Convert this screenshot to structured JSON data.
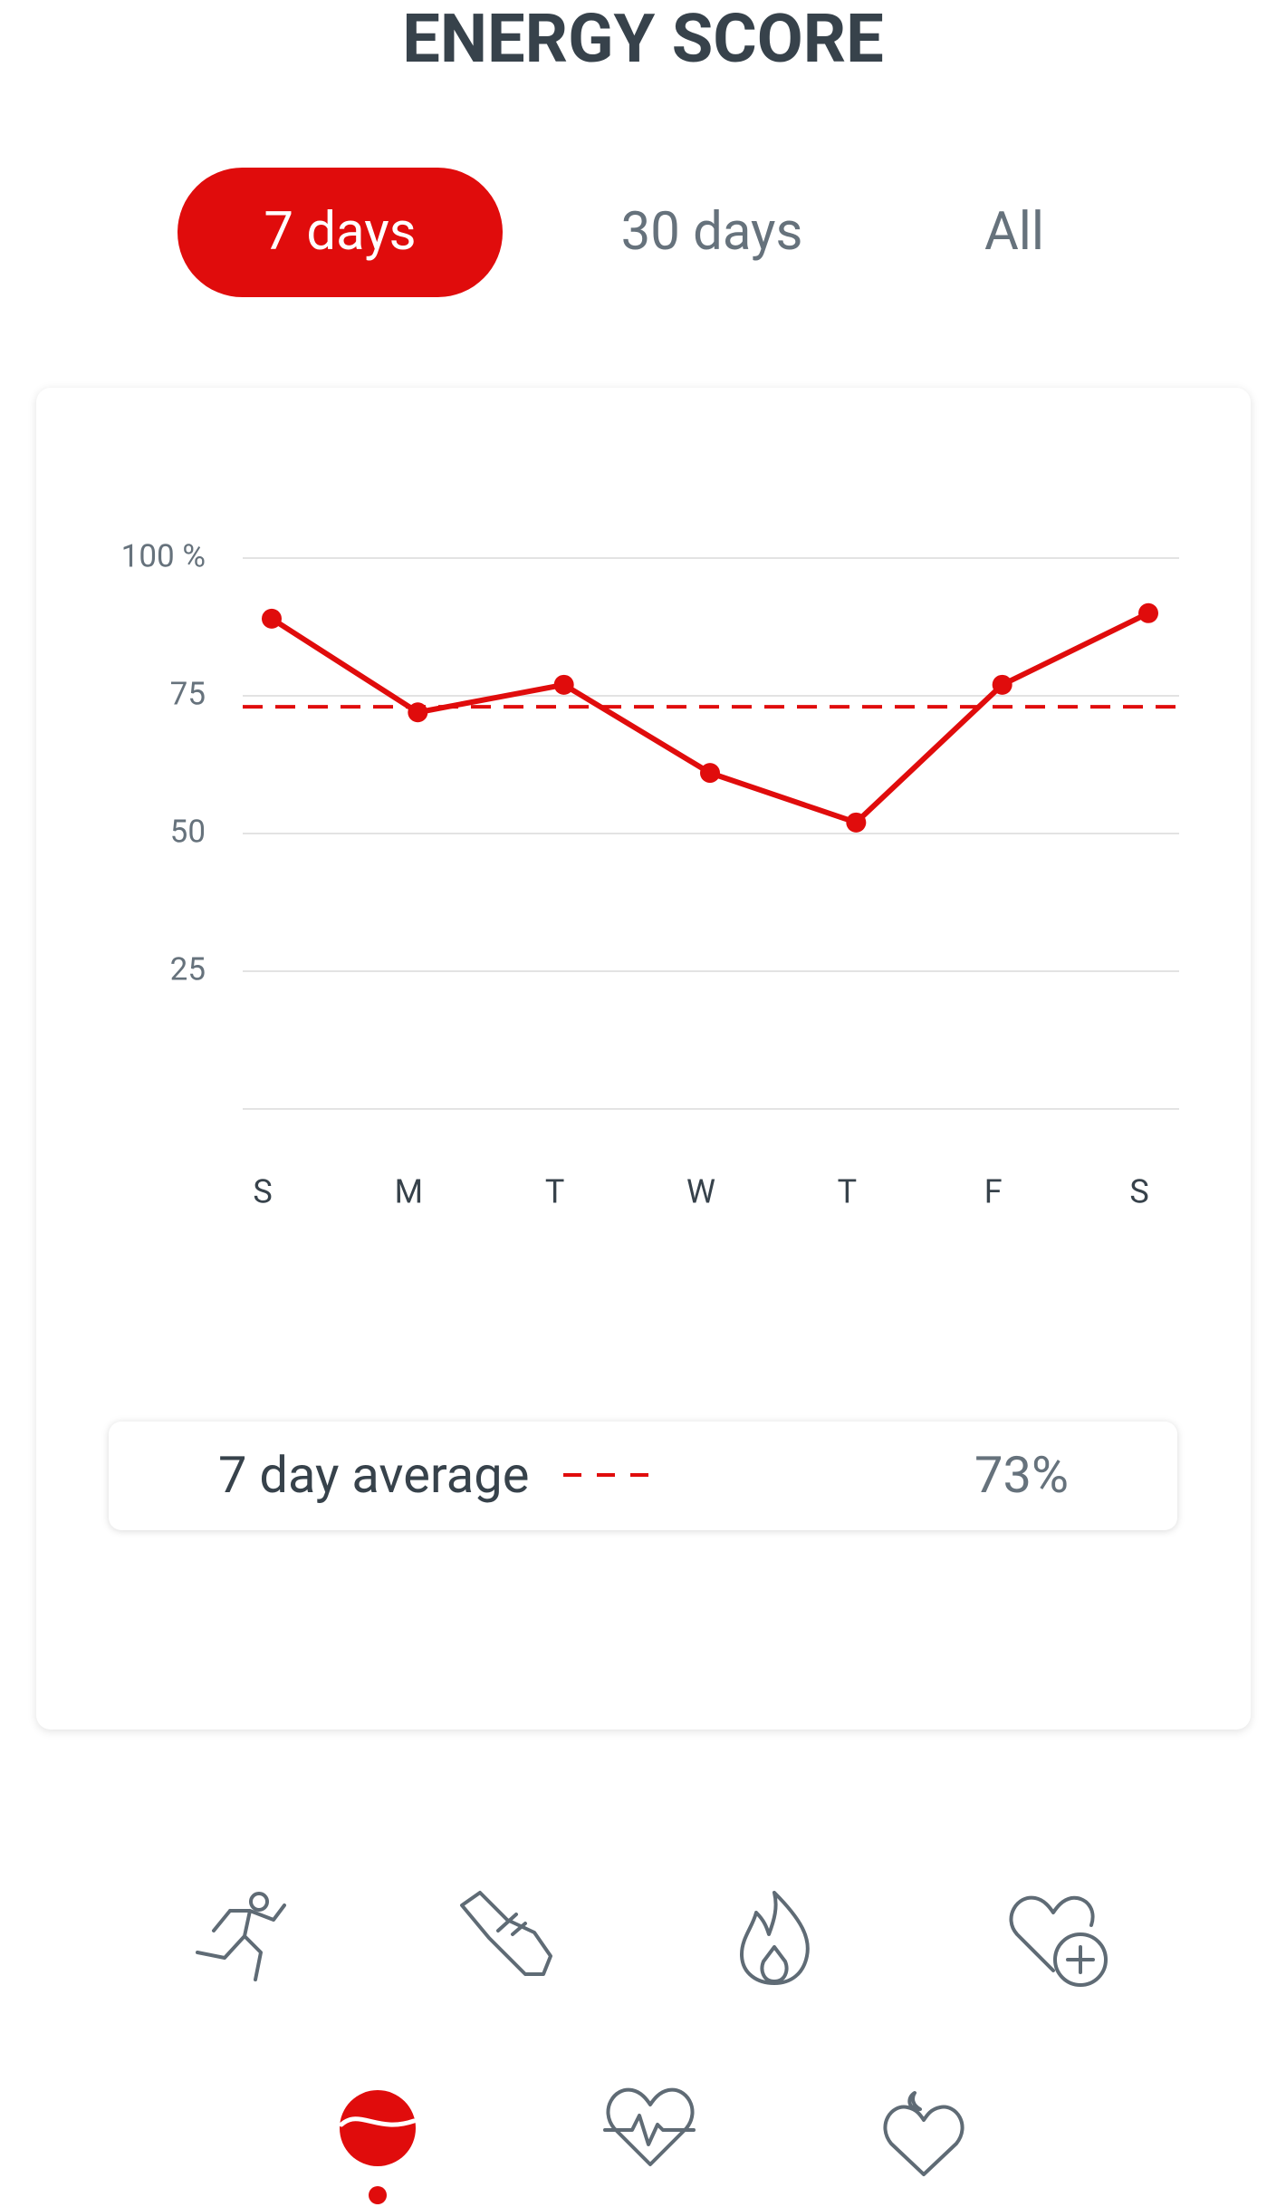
{
  "header": {
    "title": "ENERGY SCORE"
  },
  "tabs": {
    "items": [
      "7 days",
      "30 days",
      "All"
    ],
    "active": 0
  },
  "chart_data": {
    "type": "line",
    "categories": [
      "S",
      "M",
      "T",
      "W",
      "T",
      "F",
      "S"
    ],
    "values": [
      89,
      72,
      77,
      61,
      52,
      77,
      90
    ],
    "color": "#e00c0c",
    "ylim": [
      0,
      100
    ],
    "yticks": [
      25,
      50,
      75,
      {
        "value": 100,
        "label": "100 %"
      }
    ],
    "grid": true,
    "average": {
      "label": "7 day average",
      "value": 73,
      "value_label": "73%"
    }
  }
}
